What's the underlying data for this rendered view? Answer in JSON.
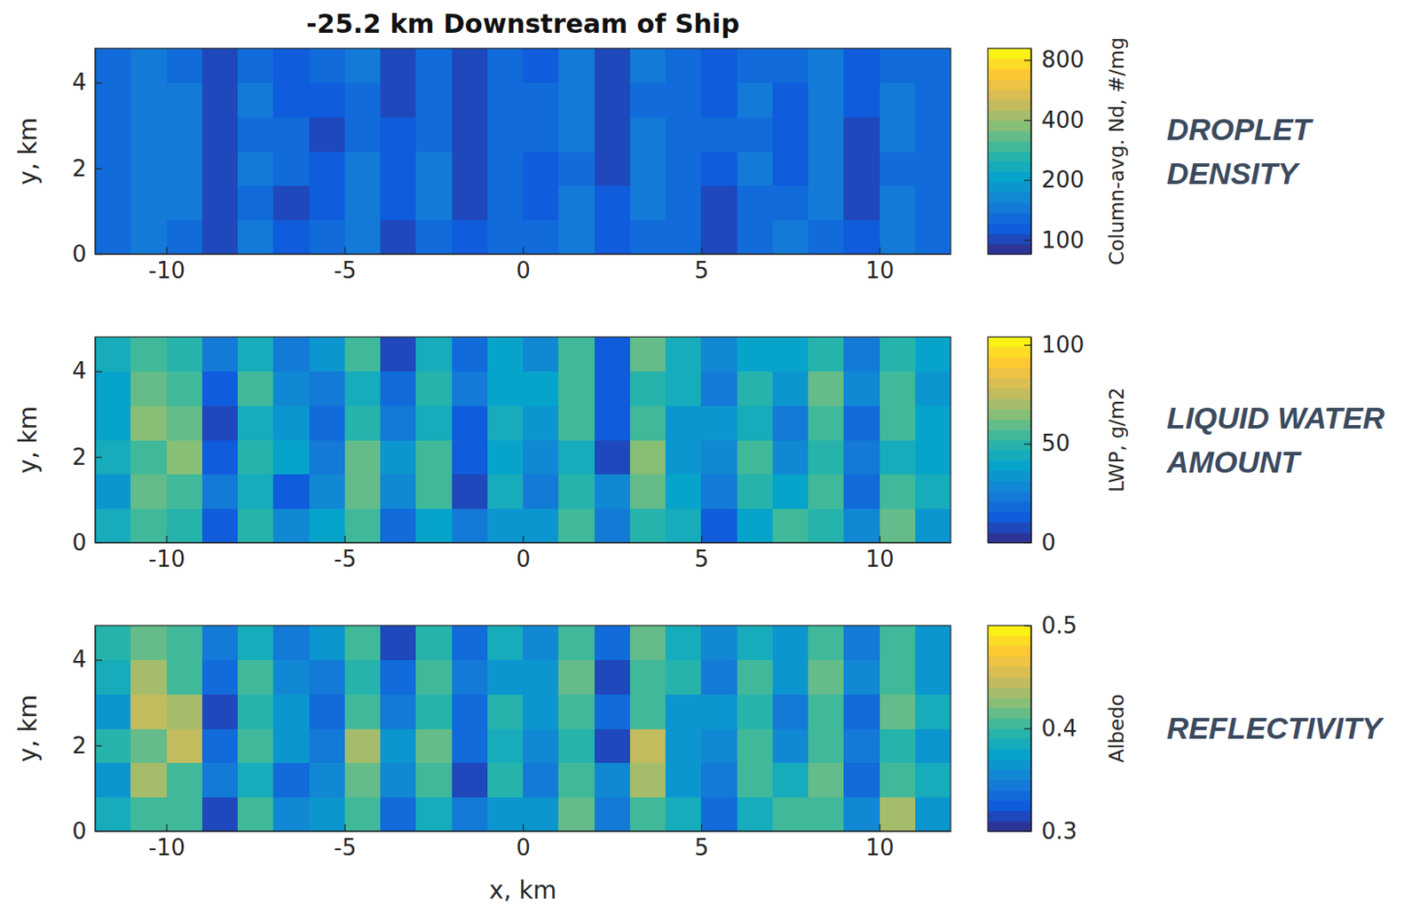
{
  "chart_data": [
    {
      "type": "heatmap",
      "title": "-25.2 km Downstream of Ship",
      "ylabel": "y, km",
      "annotation": "DROPLET DENSITY",
      "x": [
        -11.5,
        -10.5,
        -9.5,
        -8.5,
        -7.5,
        -6.5,
        -5.5,
        -4.5,
        -3.5,
        -2.5,
        -1.5,
        -0.5,
        0.5,
        1.5,
        2.5,
        3.5,
        4.5,
        5.5,
        6.5,
        7.5,
        8.5,
        9.5,
        10.5,
        11.5
      ],
      "y": [
        0.4,
        1.2,
        2.0,
        2.8,
        3.6,
        4.4
      ],
      "values": [
        [
          130,
          138,
          136,
          98,
          137,
          118,
          128,
          140,
          102,
          131,
          110,
          127,
          122,
          142,
          108,
          135,
          130,
          101,
          129,
          139,
          136,
          115,
          143,
          124
        ],
        [
          122,
          143,
          139,
          106,
          131,
          100,
          117,
          141,
          115,
          139,
          97,
          133,
          108,
          137,
          118,
          144,
          126,
          104,
          136,
          130,
          141,
          101,
          139,
          131
        ],
        [
          133,
          141,
          146,
          101,
          137,
          126,
          109,
          144,
          121,
          142,
          100,
          130,
          116,
          134,
          96,
          146,
          123,
          117,
          138,
          116,
          137,
          107,
          133,
          127
        ],
        [
          127,
          145,
          143,
          97,
          134,
          123,
          102,
          136,
          108,
          133,
          101,
          135,
          124,
          139,
          100,
          138,
          126,
          122,
          133,
          109,
          139,
          102,
          141,
          129
        ],
        [
          130,
          143,
          139,
          101,
          140,
          117,
          108,
          134,
          100,
          136,
          106,
          127,
          125,
          142,
          97,
          135,
          134,
          110,
          137,
          121,
          142,
          115,
          139,
          124
        ],
        [
          134,
          141,
          136,
          107,
          130,
          109,
          122,
          139,
          96,
          133,
          101,
          131,
          118,
          140,
          100,
          141,
          130,
          116,
          130,
          126,
          137,
          108,
          136,
          128
        ]
      ],
      "xlim": [
        -12,
        12
      ],
      "ylim": [
        0,
        4.8
      ],
      "xticks": [
        -10,
        -5,
        0,
        5,
        10
      ],
      "yticks": [
        0,
        2,
        4
      ],
      "colorbar": {
        "label": "Column-avg. Nd, #/mg",
        "lim": [
          85,
          915
        ],
        "ticks": [
          100,
          200,
          400,
          800
        ],
        "log": true
      }
    },
    {
      "type": "heatmap",
      "ylabel": "y, km",
      "annotation": "LIQUID WATER AMOUNT",
      "x": [
        -11.5,
        -10.5,
        -9.5,
        -8.5,
        -7.5,
        -6.5,
        -5.5,
        -4.5,
        -3.5,
        -2.5,
        -1.5,
        -0.5,
        0.5,
        1.5,
        2.5,
        3.5,
        4.5,
        5.5,
        6.5,
        7.5,
        8.5,
        9.5,
        10.5,
        11.5
      ],
      "y": [
        0.4,
        1.2,
        2.0,
        2.8,
        3.6,
        4.4
      ],
      "values": [
        [
          42,
          52,
          50,
          11,
          48,
          29,
          38,
          54,
          16,
          40,
          23,
          36,
          34,
          57,
          21,
          49,
          42,
          14,
          41,
          53,
          49,
          27,
          61,
          33
        ],
        [
          33,
          60,
          53,
          21,
          42,
          15,
          29,
          58,
          27,
          52,
          10,
          45,
          23,
          50,
          28,
          62,
          37,
          22,
          48,
          41,
          56,
          16,
          54,
          42
        ],
        [
          45,
          56,
          64,
          15,
          49,
          37,
          22,
          62,
          32,
          57,
          14,
          41,
          29,
          46,
          9,
          66,
          34,
          28,
          53,
          30,
          50,
          21,
          45,
          38
        ],
        [
          38,
          65,
          61,
          10,
          46,
          33,
          16,
          49,
          22,
          45,
          15,
          44,
          34,
          54,
          14,
          52,
          36,
          33,
          46,
          23,
          53,
          16,
          57,
          41
        ],
        [
          41,
          61,
          54,
          15,
          52,
          28,
          22,
          45,
          16,
          50,
          21,
          38,
          37,
          56,
          11,
          48,
          46,
          22,
          49,
          33,
          58,
          29,
          52,
          34
        ],
        [
          46,
          57,
          49,
          21,
          42,
          23,
          34,
          53,
          10,
          45,
          16,
          40,
          28,
          54,
          15,
          58,
          42,
          29,
          41,
          38,
          50,
          22,
          49,
          37
        ]
      ],
      "xlim": [
        -12,
        12
      ],
      "ylim": [
        0,
        4.8
      ],
      "xticks": [
        -10,
        -5,
        0,
        5,
        10
      ],
      "yticks": [
        0,
        2,
        4
      ],
      "colorbar": {
        "label": "LWP, g/m2",
        "lim": [
          0,
          104
        ],
        "ticks": [
          0,
          50,
          100
        ]
      }
    },
    {
      "type": "heatmap",
      "xlabel": "x, km",
      "ylabel": "y, km",
      "annotation": "REFLECTIVITY",
      "x": [
        -11.5,
        -10.5,
        -9.5,
        -8.5,
        -7.5,
        -6.5,
        -5.5,
        -4.5,
        -3.5,
        -2.5,
        -1.5,
        -0.5,
        0.5,
        1.5,
        2.5,
        3.5,
        4.5,
        5.5,
        6.5,
        7.5,
        8.5,
        9.5,
        10.5,
        11.5
      ],
      "y": [
        0.4,
        1.2,
        2.0,
        2.8,
        3.6,
        4.4
      ],
      "values": [
        [
          0.38,
          0.41,
          0.4,
          0.32,
          0.4,
          0.35,
          0.37,
          0.41,
          0.33,
          0.38,
          0.34,
          0.37,
          0.36,
          0.42,
          0.34,
          0.4,
          0.38,
          0.33,
          0.38,
          0.41,
          0.4,
          0.35,
          0.43,
          0.36
        ],
        [
          0.36,
          0.43,
          0.41,
          0.34,
          0.38,
          0.33,
          0.35,
          0.42,
          0.35,
          0.41,
          0.32,
          0.39,
          0.34,
          0.4,
          0.35,
          0.43,
          0.37,
          0.34,
          0.4,
          0.38,
          0.42,
          0.33,
          0.41,
          0.38
        ],
        [
          0.39,
          0.42,
          0.44,
          0.33,
          0.4,
          0.37,
          0.34,
          0.43,
          0.36,
          0.42,
          0.33,
          0.38,
          0.35,
          0.39,
          0.32,
          0.44,
          0.36,
          0.35,
          0.41,
          0.35,
          0.4,
          0.34,
          0.39,
          0.37
        ],
        [
          0.37,
          0.44,
          0.43,
          0.32,
          0.39,
          0.36,
          0.33,
          0.4,
          0.34,
          0.39,
          0.33,
          0.39,
          0.36,
          0.41,
          0.33,
          0.41,
          0.37,
          0.36,
          0.39,
          0.34,
          0.41,
          0.33,
          0.42,
          0.38
        ],
        [
          0.38,
          0.43,
          0.41,
          0.33,
          0.41,
          0.35,
          0.34,
          0.39,
          0.33,
          0.4,
          0.34,
          0.37,
          0.37,
          0.42,
          0.32,
          0.4,
          0.39,
          0.34,
          0.4,
          0.36,
          0.42,
          0.35,
          0.41,
          0.36
        ],
        [
          0.39,
          0.42,
          0.4,
          0.34,
          0.38,
          0.34,
          0.36,
          0.41,
          0.32,
          0.39,
          0.33,
          0.38,
          0.35,
          0.41,
          0.33,
          0.42,
          0.38,
          0.35,
          0.38,
          0.37,
          0.4,
          0.34,
          0.4,
          0.37
        ]
      ],
      "xlim": [
        -12,
        12
      ],
      "ylim": [
        0,
        4.8
      ],
      "xticks": [
        -10,
        -5,
        0,
        5,
        10
      ],
      "yticks": [
        0,
        2,
        4
      ],
      "colorbar": {
        "label": "Albedo",
        "lim": [
          0.3,
          0.5
        ],
        "ticks": [
          0.3,
          0.4,
          0.5
        ]
      }
    }
  ]
}
